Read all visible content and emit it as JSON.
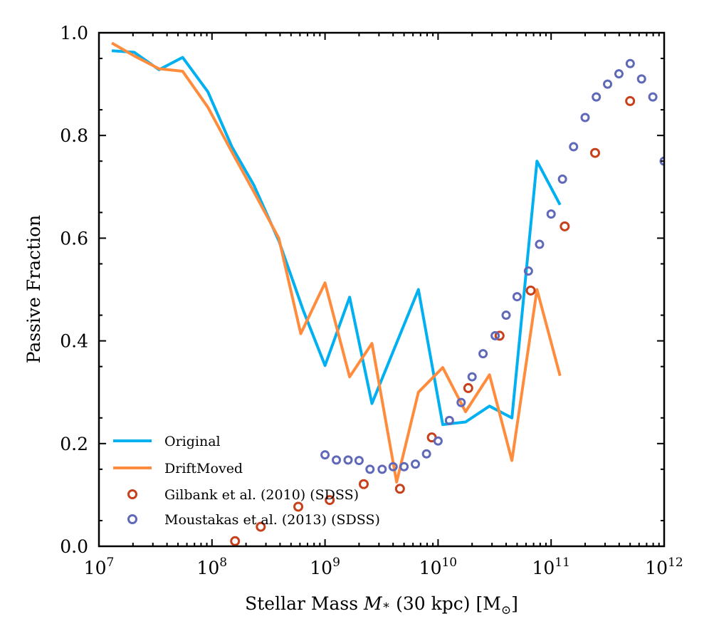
{
  "chart_data": {
    "type": "line",
    "xlabel_prefix": "Stellar Mass ",
    "xlabel_var": "M",
    "xlabel_sub": "∗",
    "xlabel_suffix": " (30 kpc) [M",
    "xlabel_unit_sub": "⊙",
    "xlabel_close": "]",
    "ylabel": "Passive Fraction",
    "xscale": "log",
    "xlim": [
      10000000,
      1000000000000
    ],
    "ylim": [
      0.0,
      1.0
    ],
    "x_ticks": [
      {
        "value": 10000000,
        "base": "10",
        "exp": "7"
      },
      {
        "value": 100000000,
        "base": "10",
        "exp": "8"
      },
      {
        "value": 1000000000,
        "base": "10",
        "exp": "9"
      },
      {
        "value": 10000000000,
        "base": "10",
        "exp": "10"
      },
      {
        "value": 100000000000,
        "base": "10",
        "exp": "11"
      },
      {
        "value": 1000000000000,
        "base": "10",
        "exp": "12"
      }
    ],
    "y_ticks": [
      {
        "value": 0.0,
        "label": "0.0"
      },
      {
        "value": 0.2,
        "label": "0.2"
      },
      {
        "value": 0.4,
        "label": "0.4"
      },
      {
        "value": 0.6,
        "label": "0.6"
      },
      {
        "value": 0.8,
        "label": "0.8"
      },
      {
        "value": 1.0,
        "label": "1.0"
      }
    ],
    "grid": false,
    "legend_position": "lower-left",
    "series": [
      {
        "name": "Original",
        "kind": "line",
        "color": "#00b0f0",
        "points": [
          [
            13000000,
            0.965
          ],
          [
            20500000,
            0.962
          ],
          [
            34000000,
            0.928
          ],
          [
            55000000,
            0.952
          ],
          [
            92000000,
            0.885
          ],
          [
            150000000,
            0.778
          ],
          [
            235000000,
            0.703
          ],
          [
            390000000,
            0.595
          ],
          [
            640000000,
            0.46
          ],
          [
            1000000000,
            0.352
          ],
          [
            1650000000,
            0.485
          ],
          [
            2600000000,
            0.278
          ],
          [
            6700000000,
            0.5
          ],
          [
            11000000000,
            0.237
          ],
          [
            17500000000,
            0.242
          ],
          [
            28500000000,
            0.273
          ],
          [
            45000000000,
            0.25
          ],
          [
            75000000000,
            0.75
          ],
          [
            120000000000,
            0.665
          ]
        ]
      },
      {
        "name": "DriftMoved",
        "kind": "line",
        "color": "#ff8c3c",
        "points": [
          [
            13000000,
            0.98
          ],
          [
            20500000,
            0.955
          ],
          [
            34000000,
            0.93
          ],
          [
            55000000,
            0.925
          ],
          [
            92000000,
            0.855
          ],
          [
            150000000,
            0.768
          ],
          [
            235000000,
            0.69
          ],
          [
            390000000,
            0.6
          ],
          [
            610000000,
            0.414
          ],
          [
            1000000000,
            0.513
          ],
          [
            1650000000,
            0.33
          ],
          [
            2600000000,
            0.395
          ],
          [
            4300000000,
            0.125
          ],
          [
            6700000000,
            0.3
          ],
          [
            11000000000,
            0.348
          ],
          [
            17500000000,
            0.262
          ],
          [
            28500000000,
            0.334
          ],
          [
            45000000000,
            0.167
          ],
          [
            75000000000,
            0.5
          ],
          [
            120000000000,
            0.332
          ]
        ]
      },
      {
        "name": "Gilbank et al. (2010) (SDSS)",
        "kind": "scatter",
        "color": "#c8401a",
        "points": [
          [
            160000000,
            0.01
          ],
          [
            270000000,
            0.038
          ],
          [
            580000000,
            0.077
          ],
          [
            1100000000,
            0.09
          ],
          [
            2200000000,
            0.121
          ],
          [
            4600000000,
            0.112
          ],
          [
            8800000000,
            0.212
          ],
          [
            18500000000,
            0.308
          ],
          [
            35000000000,
            0.41
          ],
          [
            66000000000,
            0.498
          ],
          [
            132000000000,
            0.623
          ],
          [
            245000000000,
            0.766
          ],
          [
            500000000000,
            0.867
          ]
        ]
      },
      {
        "name": "Moustakas et al. (2013) (SDSS)",
        "kind": "scatter",
        "color": "#6068b8",
        "points": [
          [
            1000000000,
            0.178
          ],
          [
            1260000000,
            0.168
          ],
          [
            1600000000,
            0.168
          ],
          [
            2000000000,
            0.167
          ],
          [
            2500000000,
            0.15
          ],
          [
            3200000000,
            0.15
          ],
          [
            4000000000,
            0.155
          ],
          [
            5000000000,
            0.155
          ],
          [
            6300000000,
            0.16
          ],
          [
            7900000000,
            0.18
          ],
          [
            10000000000,
            0.205
          ],
          [
            12600000000,
            0.245
          ],
          [
            16000000000,
            0.28
          ],
          [
            20000000000,
            0.33
          ],
          [
            25000000000,
            0.375
          ],
          [
            32000000000,
            0.41
          ],
          [
            40000000000,
            0.45
          ],
          [
            50000000000,
            0.486
          ],
          [
            63000000000,
            0.536
          ],
          [
            79000000000,
            0.588
          ],
          [
            100000000000,
            0.647
          ],
          [
            126000000000,
            0.715
          ],
          [
            158000000000,
            0.778
          ],
          [
            200000000000,
            0.835
          ],
          [
            251000000000,
            0.875
          ],
          [
            316000000000,
            0.9
          ],
          [
            398000000000,
            0.92
          ],
          [
            501000000000,
            0.94
          ],
          [
            631000000000,
            0.91
          ],
          [
            794000000000,
            0.875
          ],
          [
            1000000000000,
            0.75
          ]
        ]
      }
    ]
  }
}
